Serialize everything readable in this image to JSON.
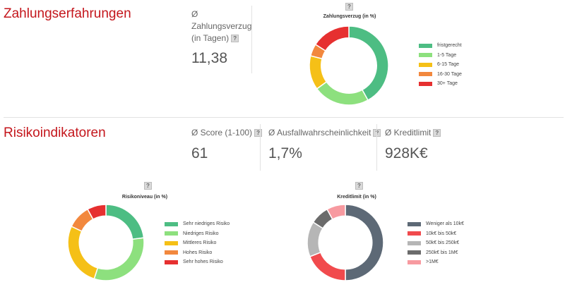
{
  "section1": {
    "title": "Zahlungserfahrungen",
    "metric": {
      "label_line1": "Ø",
      "label_line2": "Zahlungsverzug",
      "label_line3": "(in Tagen)",
      "value": "11,38"
    }
  },
  "section2": {
    "title": "Risikoindikatoren",
    "metrics": [
      {
        "label": "Ø Score (1-100)",
        "value": "61"
      },
      {
        "label": "Ø Ausfallwahrscheinlichkeit",
        "value": "1,7%"
      },
      {
        "label": "Ø Kreditlimit",
        "value": "928K€"
      }
    ]
  },
  "help_glyph": "?",
  "chart_data": [
    {
      "type": "pie",
      "title": "Zahlungsverzug (in %)",
      "categories": [
        "fristgerecht",
        "1-5 Tage",
        "6-15 Tage",
        "16-30 Tage",
        "30+ Tage"
      ],
      "values": [
        42,
        23,
        14,
        5,
        16
      ],
      "colors": [
        "#4dbd83",
        "#8de07e",
        "#f5c017",
        "#f2883e",
        "#e63030"
      ],
      "legend": "right"
    },
    {
      "type": "pie",
      "title": "Risikoniveau (in %)",
      "categories": [
        "Sehr niedriges Risiko",
        "Niedriges Risiko",
        "Mittleres Risiko",
        "Hohes Risiko",
        "Sehr hohes Risiko"
      ],
      "values": [
        23,
        32,
        27,
        10,
        8
      ],
      "colors": [
        "#4dbd83",
        "#8de07e",
        "#f5c017",
        "#f2883e",
        "#e63030"
      ],
      "legend": "right"
    },
    {
      "type": "pie",
      "title": "Kreditlimit (in %)",
      "categories": [
        "Weniger als 10k€",
        "10k€ bis 50k€",
        "50k€ bis 250k€",
        "250k€ bis 1M€",
        ">1M€"
      ],
      "values": [
        50,
        19,
        15,
        8,
        8
      ],
      "colors": [
        "#5d6976",
        "#f14a4d",
        "#b6b6b6",
        "#6b6b6b",
        "#f79aa0"
      ],
      "legend": "right"
    }
  ]
}
